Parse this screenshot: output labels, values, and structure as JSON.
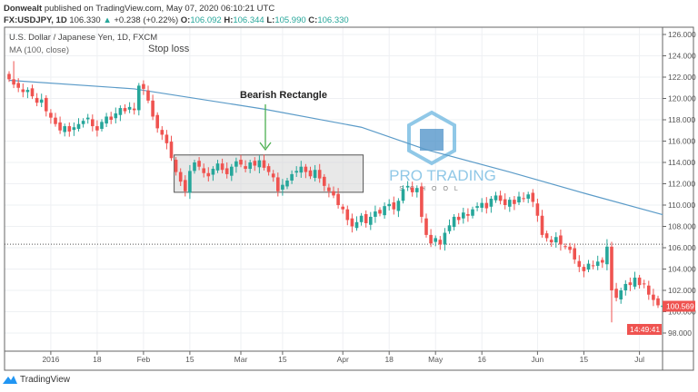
{
  "header": {
    "author": "Donwealt",
    "published": "published on TradingView.com, May 07, 2020 06:10:21 UTC",
    "symbol": "FX:USDJPY, 1D",
    "last": "106.330",
    "change": "+0.238 (+0.22%)",
    "o_label": "O:",
    "o": "106.092",
    "h_label": "H:",
    "h": "106.344",
    "l_label": "L:",
    "l": "105.990",
    "c_label": "C:",
    "c": "106.330"
  },
  "legend": {
    "title": "U.S. Dollar / Japanese Yen, 1D, FXCM",
    "indicator": "MA (100, close)"
  },
  "annotations": {
    "stop_loss": "Stop loss",
    "pattern": "Bearish Rectangle"
  },
  "watermark": {
    "line1": "PRO TRADING",
    "line2": "SCHOOL"
  },
  "footer": {
    "brand": "TradingView"
  },
  "colors": {
    "up": "#26a69a",
    "down": "#ef5350",
    "ma": "#5b9bc8",
    "rect": "#d6d6d6",
    "arrow": "#4caf50"
  },
  "price_tag": {
    "price": "100.569",
    "timer": "14:49:41"
  },
  "chart_data": {
    "type": "candlestick",
    "y_ticks": [
      "126.000",
      "124.000",
      "122.000",
      "120.000",
      "118.000",
      "116.000",
      "114.000",
      "112.000",
      "110.000",
      "108.000",
      "106.000",
      "104.000",
      "102.000",
      "100.000",
      "98.000"
    ],
    "ylim": [
      97,
      127
    ],
    "x_ticks": [
      {
        "label": "2016",
        "i": 9
      },
      {
        "label": "18",
        "i": 19
      },
      {
        "label": "Feb",
        "i": 29
      },
      {
        "label": "15",
        "i": 39
      },
      {
        "label": "Mar",
        "i": 50
      },
      {
        "label": "15",
        "i": 59
      },
      {
        "label": "Apr",
        "i": 72
      },
      {
        "label": "18",
        "i": 82
      },
      {
        "label": "May",
        "i": 92
      },
      {
        "label": "16",
        "i": 102
      },
      {
        "label": "Jun",
        "i": 114
      },
      {
        "label": "15",
        "i": 124
      },
      {
        "label": "Jul",
        "i": 136
      }
    ],
    "closes": [
      121.8,
      121.3,
      121.0,
      120.6,
      120.8,
      120.2,
      119.6,
      119.9,
      118.8,
      118.2,
      117.6,
      117.0,
      117.4,
      116.9,
      117.3,
      117.6,
      117.9,
      118.2,
      117.4,
      117.0,
      117.8,
      118.3,
      118.0,
      118.6,
      119.1,
      118.8,
      119.2,
      118.9,
      121.2,
      120.9,
      119.8,
      118.3,
      117.2,
      116.6,
      115.8,
      114.4,
      113.1,
      112.2,
      111.3,
      113.2,
      114.0,
      113.6,
      113.0,
      112.7,
      113.4,
      113.9,
      113.3,
      112.9,
      113.6,
      114.1,
      113.8,
      113.4,
      114.0,
      113.7,
      114.2,
      113.5,
      113.1,
      112.6,
      111.3,
      111.9,
      112.3,
      112.9,
      113.2,
      113.6,
      113.1,
      112.7,
      113.3,
      112.5,
      111.8,
      111.3,
      110.9,
      110.0,
      109.6,
      108.6,
      108.0,
      108.4,
      109.0,
      108.3,
      108.9,
      109.4,
      109.2,
      109.9,
      110.1,
      109.6,
      110.4,
      111.5,
      111.8,
      111.2,
      111.6,
      108.9,
      107.2,
      106.4,
      106.9,
      106.3,
      107.4,
      108.1,
      108.9,
      108.6,
      109.3,
      109.0,
      109.6,
      109.9,
      110.2,
      109.7,
      110.6,
      110.9,
      110.4,
      110.0,
      110.5,
      110.1,
      110.8,
      110.6,
      111.0,
      110.3,
      109.0,
      107.2,
      106.9,
      106.5,
      107.0,
      106.3,
      106.1,
      105.8,
      104.9,
      104.2,
      103.8,
      104.5,
      104.3,
      104.7,
      104.6,
      106.1,
      102.0,
      101.3,
      102.0,
      102.6,
      102.5,
      103.2,
      102.5,
      102.6,
      101.6,
      101.1,
      100.6,
      100.57
    ],
    "ma_100": [
      {
        "i": 0,
        "v": 121.7
      },
      {
        "i": 27,
        "v": 120.9
      },
      {
        "i": 55,
        "v": 119.0
      },
      {
        "i": 76,
        "v": 117.3
      },
      {
        "i": 90,
        "v": 115.2
      },
      {
        "i": 108,
        "v": 113.1
      },
      {
        "i": 125,
        "v": 111.0
      },
      {
        "i": 141,
        "v": 109.1
      }
    ],
    "horizontal_line": 106.33,
    "rectangle": {
      "i_start": 36,
      "i_end": 76,
      "top": 114.7,
      "bottom": 111.2
    }
  }
}
